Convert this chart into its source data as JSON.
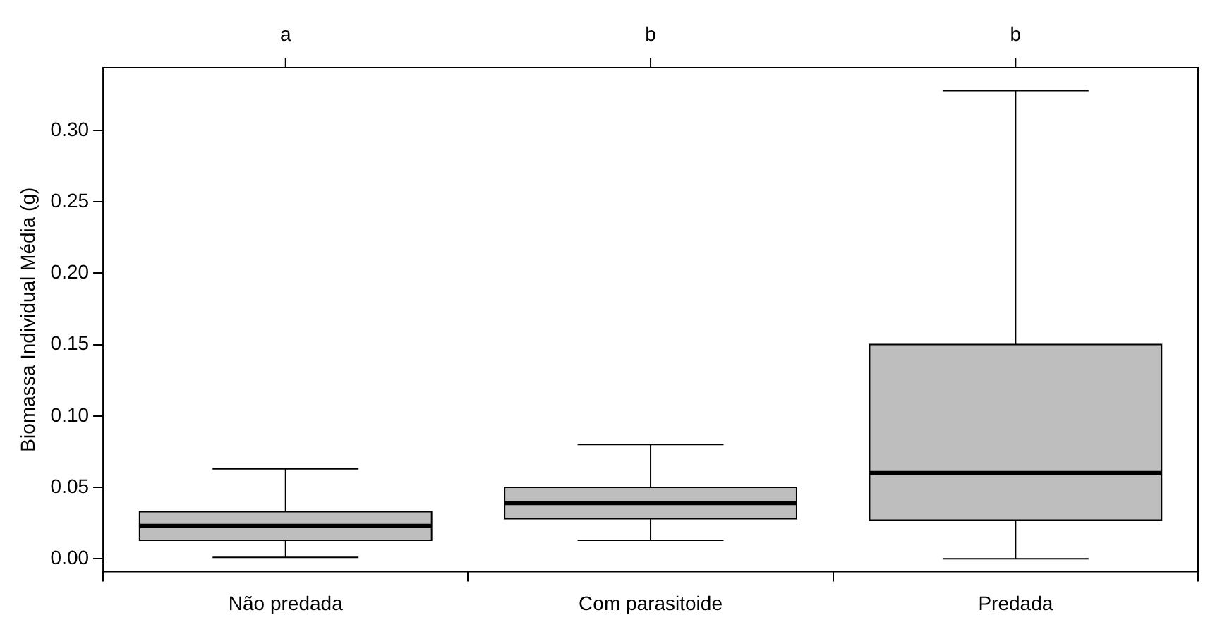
{
  "chart_data": {
    "type": "box",
    "ylabel": "Biomassa Individual Média (g)",
    "categories": [
      "Não predada",
      "Com parasitoide",
      "Predada"
    ],
    "boxes": [
      {
        "low": 0.001,
        "q1": 0.013,
        "median": 0.023,
        "q3": 0.033,
        "high": 0.063
      },
      {
        "low": 0.013,
        "q1": 0.028,
        "median": 0.039,
        "q3": 0.05,
        "high": 0.08
      },
      {
        "low": 0.0,
        "q1": 0.027,
        "median": 0.06,
        "q3": 0.15,
        "high": 0.328
      }
    ],
    "color": "#bebebe",
    "ylim": [
      -0.009,
      0.344
    ],
    "yticks": [
      {
        "value": 0,
        "label": "0.00"
      },
      {
        "value": 0.05,
        "label": "0.05"
      },
      {
        "value": 0.1,
        "label": "0.10"
      },
      {
        "value": 0.15,
        "label": "0.15"
      },
      {
        "value": 0.2,
        "label": "0.20"
      },
      {
        "value": 0.25,
        "label": "0.25"
      },
      {
        "value": 0.3,
        "label": "0.30"
      }
    ],
    "grid": false,
    "legend": false,
    "annotations": [
      {
        "text": "a",
        "x": "Não predada"
      },
      {
        "text": "b",
        "x": "Com parasitoide"
      },
      {
        "text": "b",
        "x": "Predada"
      }
    ]
  }
}
